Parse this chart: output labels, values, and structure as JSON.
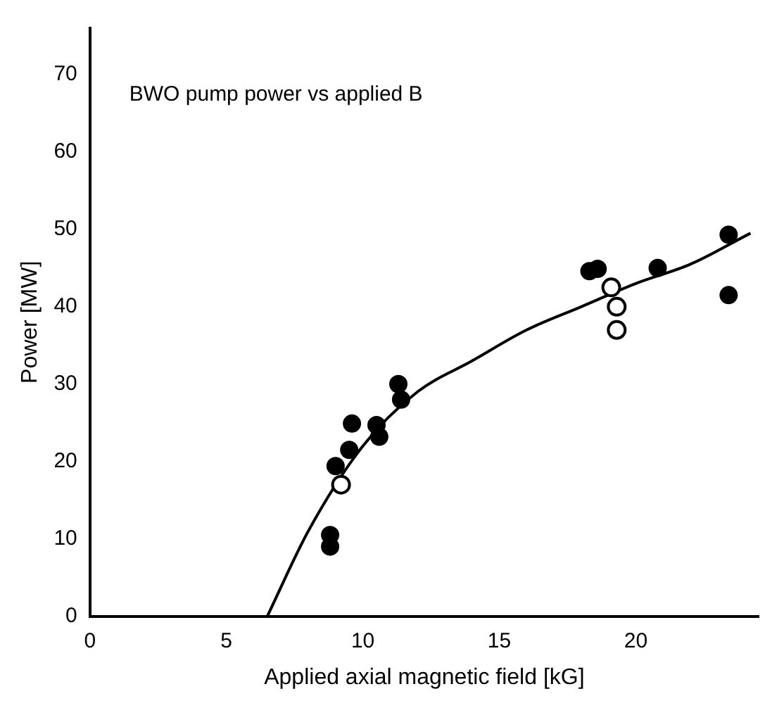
{
  "chart_data": {
    "type": "scatter",
    "xlabel": "Applied axial magnetic field [kG]",
    "ylabel": "Power [MW]",
    "annotations": [
      "BWO pump power vs applied B"
    ],
    "xlim": [
      0,
      24.5
    ],
    "ylim": [
      0,
      76
    ],
    "xticks": [
      0,
      5,
      10,
      15,
      20
    ],
    "yticks": [
      0,
      10,
      20,
      30,
      40,
      50,
      60,
      70
    ],
    "grid": false,
    "legend": false,
    "marker": "circle",
    "series": [
      {
        "color": "#000000",
        "x": [
          8.8,
          8.8,
          9.0,
          9.5,
          9.6,
          10.5,
          10.6,
          11.3,
          11.4,
          18.3,
          18.6,
          20.8,
          23.4,
          23.4
        ],
        "values": [
          10.5,
          9,
          19.4,
          21.5,
          24.9,
          24.7,
          23.2,
          30,
          28,
          44.6,
          44.9,
          45,
          49.3,
          41.5
        ]
      },
      {
        "color": "#000000",
        "x": [
          9.2,
          19.1,
          19.3,
          19.3
        ],
        "values": [
          17,
          42.5,
          40,
          37
        ]
      },
      {
        "type": "line",
        "color": "#000000",
        "marker": "none",
        "x": [
          6.5,
          8,
          10,
          12,
          14,
          16,
          18,
          20,
          22,
          24.2
        ],
        "values": [
          0,
          11,
          22,
          29,
          33,
          37,
          40,
          43,
          45.5,
          49.5
        ]
      }
    ]
  }
}
